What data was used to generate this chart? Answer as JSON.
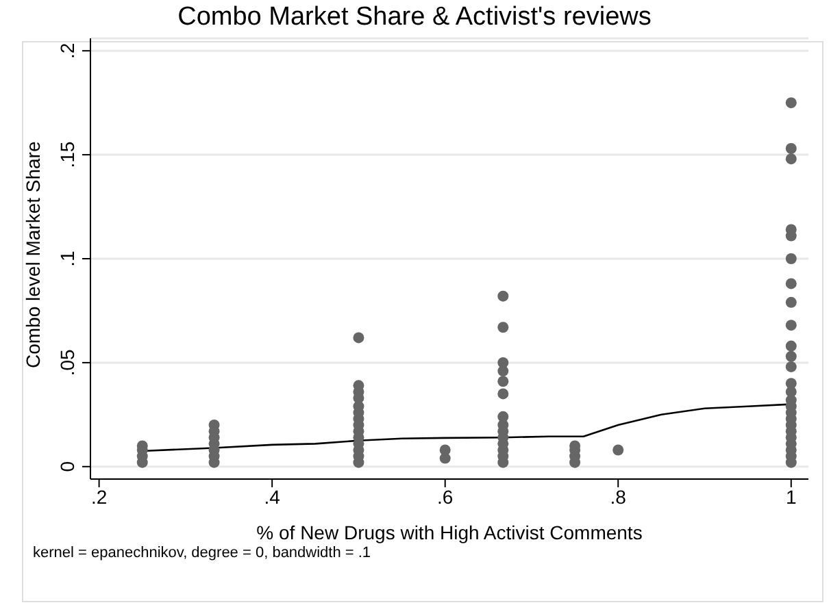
{
  "chart_data": {
    "type": "scatter",
    "title": "Combo Market Share & Activist's reviews",
    "xlabel": "% of New Drugs with High Activist Comments",
    "ylabel": "Combo level Market Share",
    "annotations": [
      "kernel = epanechnikov, degree = 0, bandwidth = .1"
    ],
    "series": [
      {
        "color": "#666666",
        "marker": "circle",
        "x": [
          0.25,
          0.25,
          0.25,
          0.25,
          0.333,
          0.333,
          0.333,
          0.333,
          0.333,
          0.333,
          0.333,
          0.5,
          0.5,
          0.5,
          0.5,
          0.5,
          0.5,
          0.5,
          0.5,
          0.5,
          0.5,
          0.5,
          0.5,
          0.5,
          0.5,
          0.6,
          0.6,
          0.667,
          0.667,
          0.667,
          0.667,
          0.667,
          0.667,
          0.667,
          0.667,
          0.667,
          0.667,
          0.667,
          0.667,
          0.667,
          0.667,
          0.75,
          0.75,
          0.75,
          0.75,
          0.8,
          1,
          1,
          1,
          1,
          1,
          1,
          1,
          1,
          1,
          1,
          1,
          1,
          1,
          1,
          1,
          1,
          1,
          1,
          1,
          1,
          1,
          1,
          1,
          1,
          1
        ],
        "values": [
          0.002,
          0.005,
          0.008,
          0.01,
          0.002,
          0.005,
          0.008,
          0.011,
          0.014,
          0.017,
          0.02,
          0.002,
          0.005,
          0.008,
          0.011,
          0.014,
          0.017,
          0.02,
          0.023,
          0.026,
          0.029,
          0.033,
          0.036,
          0.039,
          0.062,
          0.004,
          0.008,
          0.002,
          0.005,
          0.008,
          0.011,
          0.014,
          0.017,
          0.02,
          0.024,
          0.035,
          0.041,
          0.046,
          0.05,
          0.067,
          0.082,
          0.002,
          0.005,
          0.008,
          0.01,
          0.008,
          0.002,
          0.005,
          0.008,
          0.011,
          0.014,
          0.017,
          0.02,
          0.023,
          0.026,
          0.029,
          0.032,
          0.036,
          0.04,
          0.048,
          0.053,
          0.058,
          0.068,
          0.079,
          0.088,
          0.1,
          0.111,
          0.114,
          0.148,
          0.153,
          0.175
        ]
      },
      {
        "type": "line",
        "color": "#000000",
        "marker": "none",
        "line_style": "solid",
        "x": [
          0.25,
          0.333,
          0.4,
          0.45,
          0.5,
          0.55,
          0.6,
          0.667,
          0.72,
          0.76,
          0.8,
          0.85,
          0.9,
          0.95,
          1
        ],
        "values": [
          0.0075,
          0.009,
          0.0105,
          0.011,
          0.0125,
          0.0135,
          0.0138,
          0.014,
          0.0145,
          0.0145,
          0.02,
          0.025,
          0.028,
          0.029,
          0.03
        ]
      }
    ],
    "xlim": [
      0.19,
      1.02
    ],
    "xticks": [
      {
        "value": 0.2,
        "label": ".2"
      },
      {
        "value": 0.4,
        "label": ".4"
      },
      {
        "value": 0.6,
        "label": ".6"
      },
      {
        "value": 0.8,
        "label": ".8"
      },
      1
    ],
    "ylim": [
      -0.006,
      0.206
    ],
    "yticks": [
      0,
      {
        "value": 0.05,
        "label": ".05"
      },
      {
        "value": 0.1,
        "label": ".1"
      },
      {
        "value": 0.15,
        "label": ".15"
      },
      {
        "value": 0.2,
        "label": ".2"
      }
    ],
    "grid": "y",
    "legend": false
  }
}
